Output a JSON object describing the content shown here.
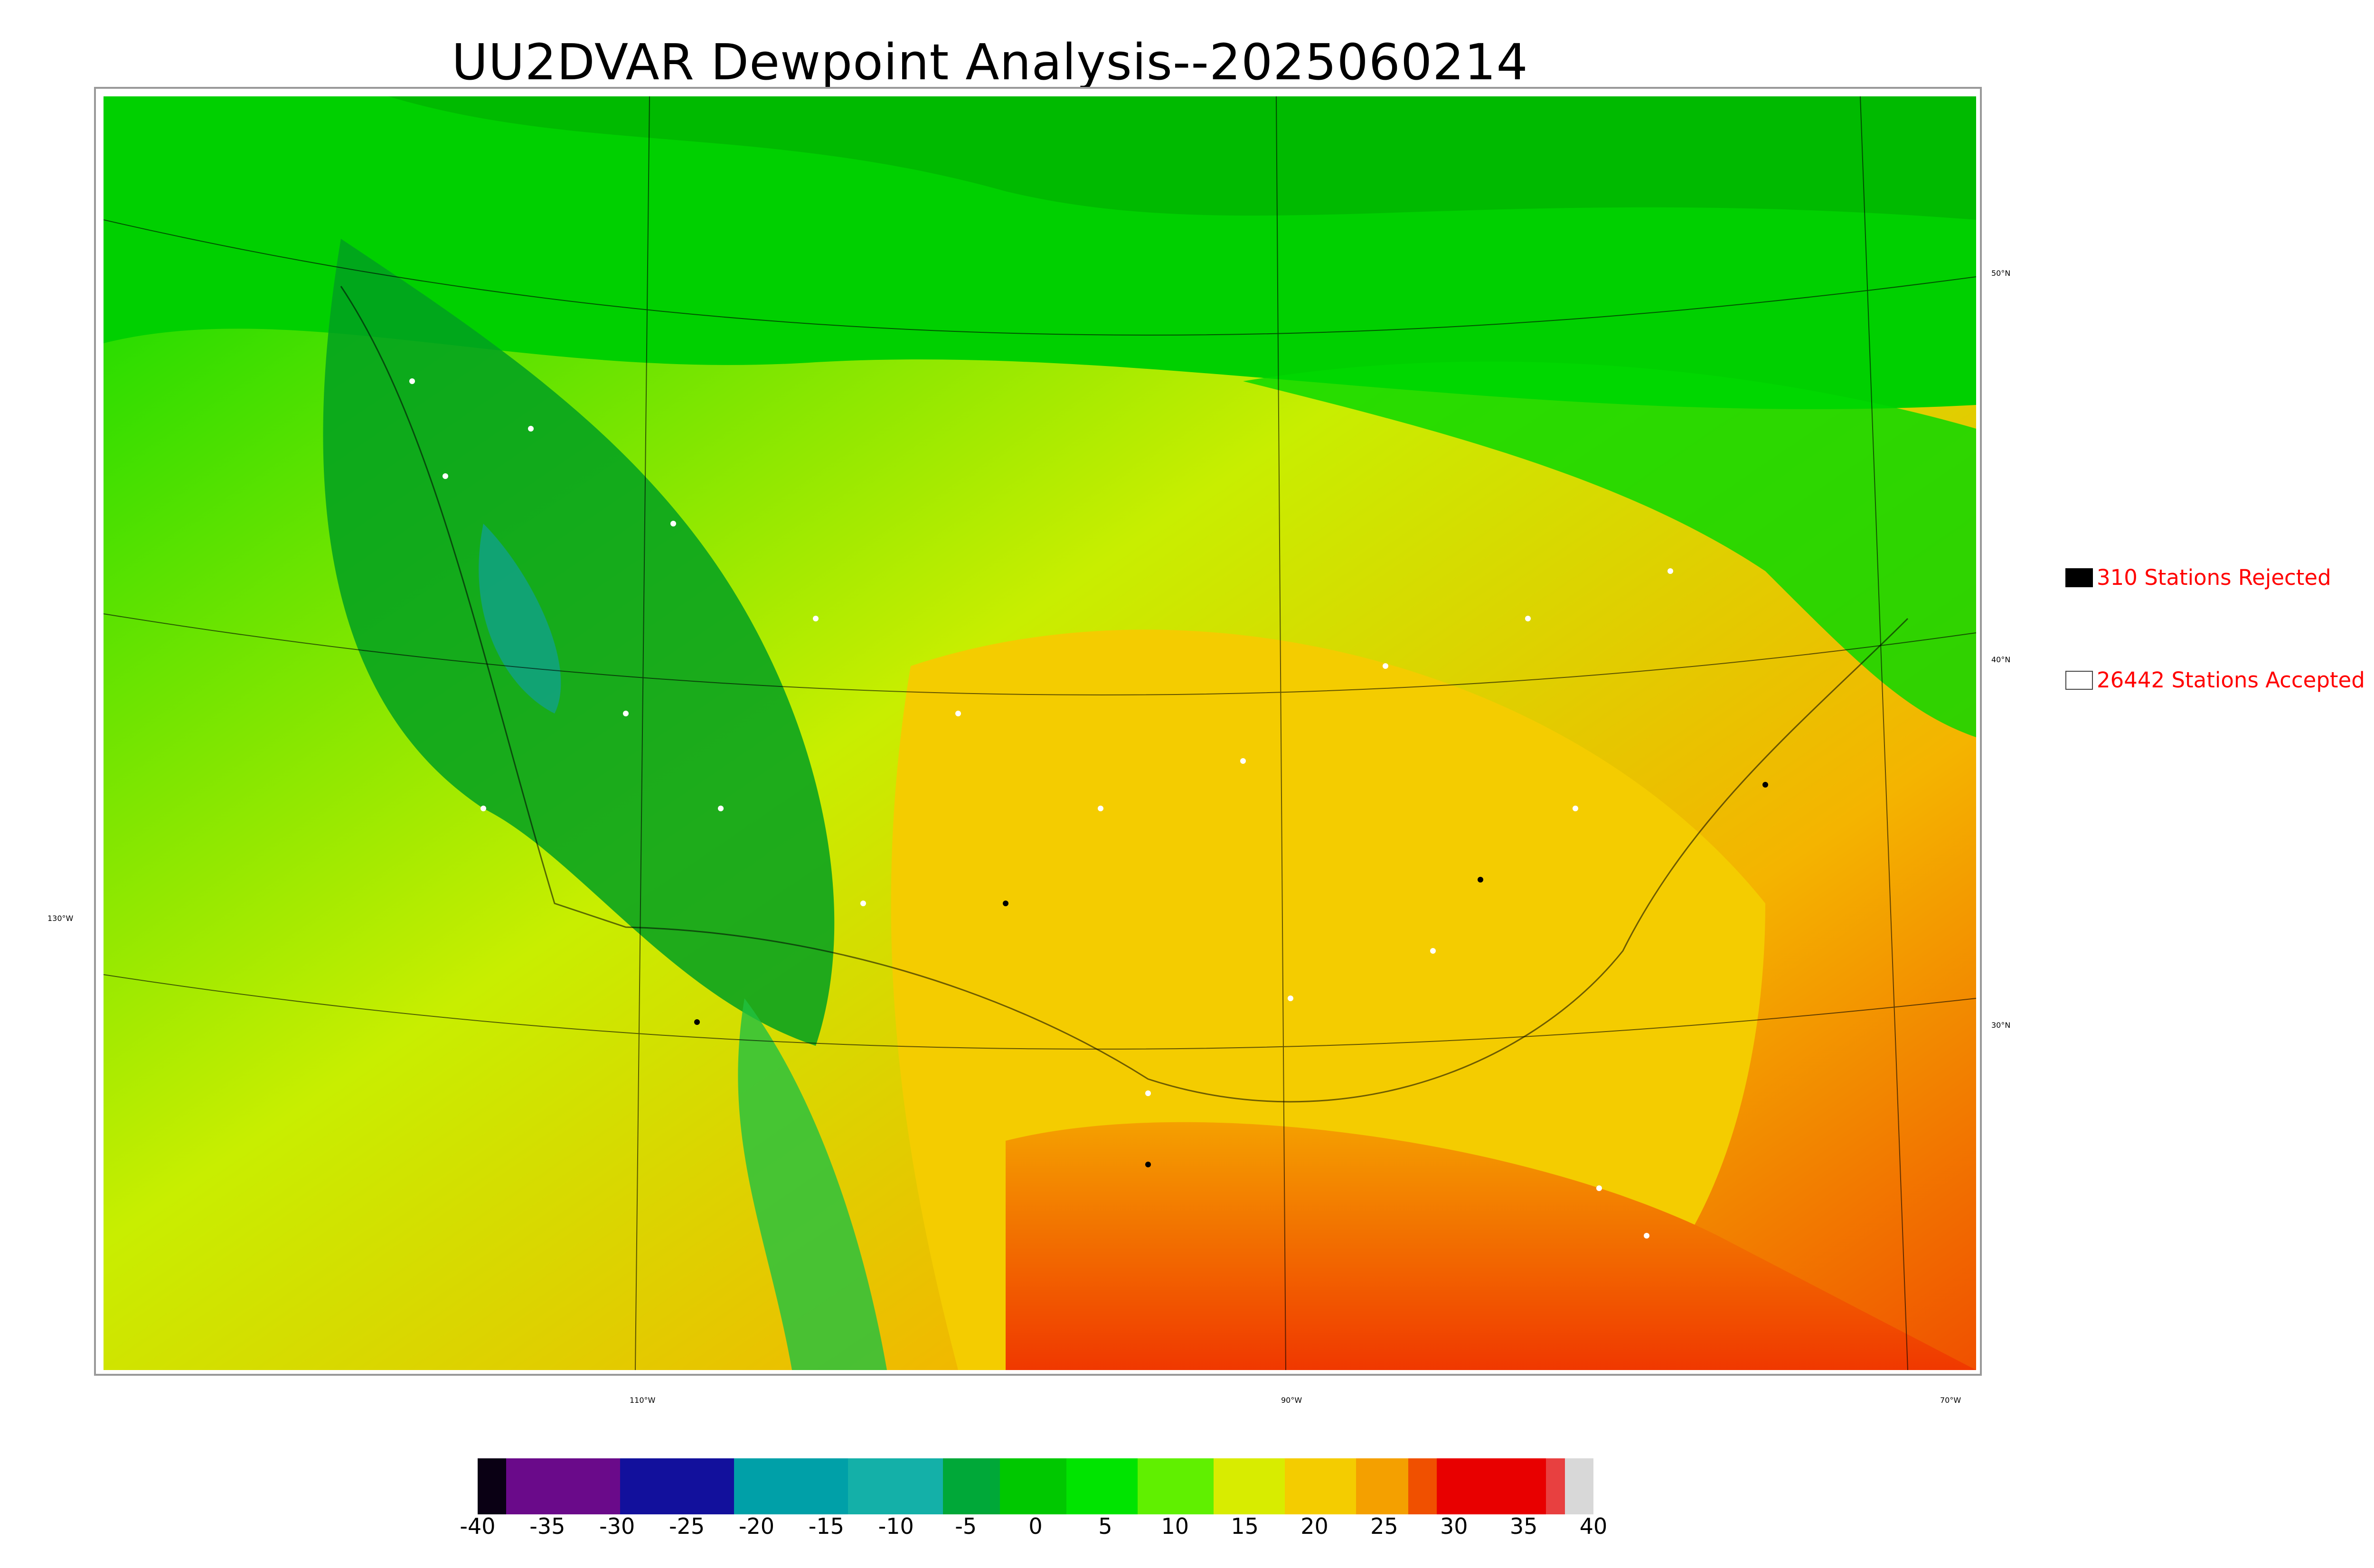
{
  "title": "UU2DVAR Dewpoint Analysis--2025060214",
  "legend": {
    "rejected": {
      "label": "310 Stations Rejected",
      "swatch_color": "#000000"
    },
    "accepted": {
      "label": "26442 Stations Accepted",
      "swatch_color": "#ffffff"
    }
  },
  "latitude_labels": [
    "50°N",
    "40°N",
    "30°N"
  ],
  "longitude_labels": [
    "130°W",
    "110°W",
    "90°W",
    "70°W"
  ],
  "colorbar": {
    "ticks": [
      "-40",
      "-35",
      "-30",
      "-25",
      "-20",
      "-15",
      "-10",
      "-5",
      "0",
      "5",
      "10",
      "15",
      "20",
      "25",
      "30",
      "35",
      "40"
    ],
    "colors": [
      "#0a0014",
      "#6a0a8a",
      "#12109c",
      "#12109c",
      "#1aa2a8",
      "#00a8a8",
      "#16b0a8",
      "#0aa030",
      "#00c800",
      "#10e010",
      "#40f000",
      "#c8f000",
      "#f0e000",
      "#f8b800",
      "#f05000",
      "#e00000",
      "#e84040",
      "#d8d8d8"
    ]
  },
  "map": {
    "description_colors": {
      "cold": "#009a10",
      "cool": "#00e000",
      "mild": "#c0ee00",
      "warm": "#f4c800",
      "hot": "#f06000"
    }
  }
}
